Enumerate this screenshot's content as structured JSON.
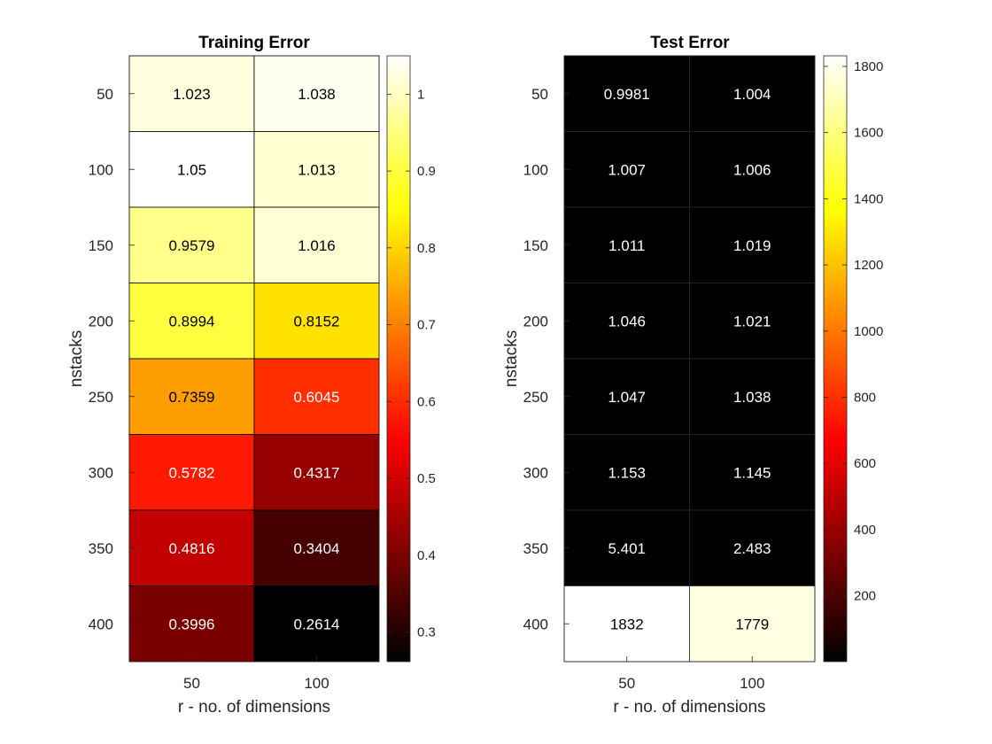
{
  "chart_data": [
    {
      "type": "heatmap",
      "title": "Training Error",
      "xlabel": "r - no. of dimensions",
      "ylabel": "nstacks",
      "x": [
        "50",
        "100"
      ],
      "y": [
        "50",
        "100",
        "150",
        "200",
        "250",
        "300",
        "350",
        "400"
      ],
      "values": [
        [
          1.023,
          1.038
        ],
        [
          1.05,
          1.013
        ],
        [
          0.9579,
          1.016
        ],
        [
          0.8994,
          0.8152
        ],
        [
          0.7359,
          0.6045
        ],
        [
          0.5782,
          0.4317
        ],
        [
          0.4816,
          0.3404
        ],
        [
          0.3996,
          0.2614
        ]
      ],
      "value_labels": [
        [
          "1.023",
          "1.038"
        ],
        [
          "1.05",
          "1.013"
        ],
        [
          "0.9579",
          "1.016"
        ],
        [
          "0.8994",
          "0.8152"
        ],
        [
          "0.7359",
          "0.6045"
        ],
        [
          "0.5782",
          "0.4317"
        ],
        [
          "0.4816",
          "0.3404"
        ],
        [
          "0.3996",
          "0.2614"
        ]
      ],
      "colormap": "hot",
      "clim": [
        0.2614,
        1.05
      ],
      "colorbar_ticks": [
        0.3,
        0.4,
        0.5,
        0.6,
        0.7,
        0.8,
        0.9,
        1
      ],
      "colorbar_tick_labels": [
        "0.3",
        "0.4",
        "0.5",
        "0.6",
        "0.7",
        "0.8",
        "0.9",
        "1"
      ],
      "colorbar_position": "right"
    },
    {
      "type": "heatmap",
      "title": "Test Error",
      "xlabel": "r - no. of dimensions",
      "ylabel": "nstacks",
      "x": [
        "50",
        "100"
      ],
      "y": [
        "50",
        "100",
        "150",
        "200",
        "250",
        "300",
        "350",
        "400"
      ],
      "values": [
        [
          0.9981,
          1.004
        ],
        [
          1.007,
          1.006
        ],
        [
          1.011,
          1.019
        ],
        [
          1.046,
          1.021
        ],
        [
          1.047,
          1.038
        ],
        [
          1.153,
          1.145
        ],
        [
          5.401,
          2.483
        ],
        [
          1832,
          1779
        ]
      ],
      "value_labels": [
        [
          "0.9981",
          "1.004"
        ],
        [
          "1.007",
          "1.006"
        ],
        [
          "1.011",
          "1.019"
        ],
        [
          "1.046",
          "1.021"
        ],
        [
          "1.047",
          "1.038"
        ],
        [
          "1.153",
          "1.145"
        ],
        [
          "5.401",
          "2.483"
        ],
        [
          "1832",
          "1779"
        ]
      ],
      "colormap": "hot",
      "clim": [
        0.9981,
        1832
      ],
      "colorbar_ticks": [
        200,
        400,
        600,
        800,
        1000,
        1200,
        1400,
        1600,
        1800
      ],
      "colorbar_tick_labels": [
        "200",
        "400",
        "600",
        "800",
        "1000",
        "1200",
        "1400",
        "1600",
        "1800"
      ],
      "colorbar_position": "right"
    }
  ]
}
